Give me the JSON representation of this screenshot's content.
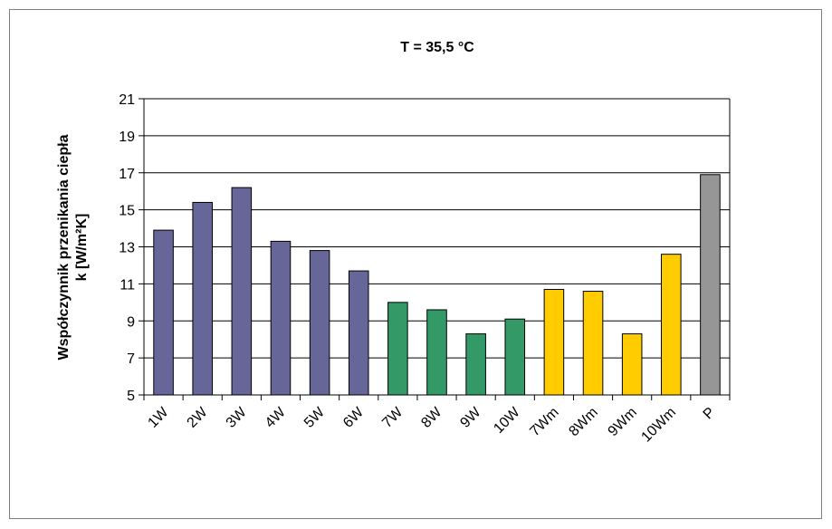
{
  "chart_data": {
    "type": "bar",
    "title": "T = 35,5 °C",
    "ylabel_line1": "Współczynnik przenikania ciepła",
    "ylabel_line2": "k [W/m²K]",
    "xlabel": "",
    "ylim": [
      5,
      21
    ],
    "yticks": [
      "5",
      "7",
      "9",
      "11",
      "13",
      "15",
      "17",
      "19",
      "21"
    ],
    "grid": true,
    "legend": "none",
    "categories": [
      "1W",
      "2W",
      "3W",
      "4W",
      "5W",
      "6W",
      "7W",
      "8W",
      "9W",
      "10W",
      "7Wm",
      "8Wm",
      "9Wm",
      "10Wm",
      "P"
    ],
    "values": [
      13.9,
      15.4,
      16.2,
      13.3,
      12.8,
      11.7,
      10.0,
      9.6,
      8.3,
      9.1,
      10.7,
      10.6,
      8.3,
      12.6,
      16.9
    ],
    "colors": [
      "#666699",
      "#666699",
      "#666699",
      "#666699",
      "#666699",
      "#666699",
      "#339966",
      "#339966",
      "#339966",
      "#339966",
      "#ffcc00",
      "#ffcc00",
      "#ffcc00",
      "#ffcc00",
      "#969696"
    ]
  }
}
